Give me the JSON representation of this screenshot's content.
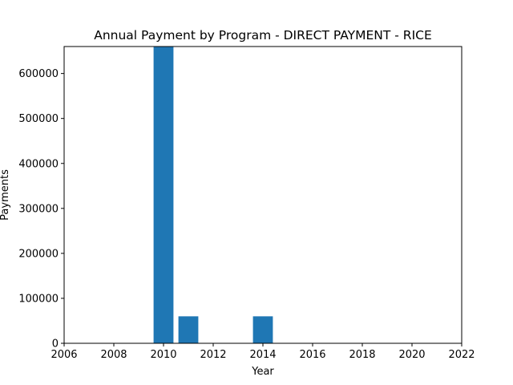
{
  "chart_data": {
    "type": "bar",
    "title": "Annual Payment by Program - DIRECT PAYMENT - RICE",
    "xlabel": "Year",
    "ylabel": "Payments",
    "x": [
      2010,
      2011,
      2014
    ],
    "values": [
      660000,
      60000,
      60000
    ],
    "bar_width_years": 0.8,
    "xlim": [
      2006,
      2022
    ],
    "ylim": [
      0,
      660000
    ],
    "xticks": [
      2006,
      2008,
      2010,
      2012,
      2014,
      2016,
      2018,
      2020,
      2022
    ],
    "yticks": [
      0,
      100000,
      200000,
      300000,
      400000,
      500000,
      600000
    ],
    "grid": false,
    "bar_color": "#1f77b4"
  }
}
